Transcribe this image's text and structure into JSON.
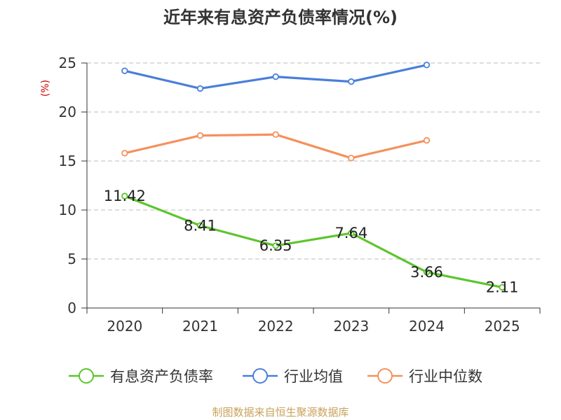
{
  "chart_data": {
    "type": "line",
    "title": "近年来有息资产负债率情况(%)",
    "ylabel": "(%)",
    "xlabel": "",
    "ylim": [
      0,
      25
    ],
    "yticks": [
      "0",
      "5",
      "10",
      "15",
      "20",
      "25"
    ],
    "categories": [
      "2020",
      "2021",
      "2022",
      "2023",
      "2024",
      "2025"
    ],
    "grid": true,
    "legend_position": "bottom",
    "series": [
      {
        "name": "有息资产负债率",
        "color": "#5cc52c",
        "values": [
          11.42,
          8.41,
          6.35,
          7.64,
          3.66,
          2.11
        ],
        "data_labels": [
          "11.42",
          "8.41",
          "6.35",
          "7.64",
          "3.66",
          "2.11"
        ]
      },
      {
        "name": "行业均值",
        "color": "#4a7fd9",
        "values": [
          24.2,
          22.4,
          23.6,
          23.1,
          24.8,
          null
        ]
      },
      {
        "name": "行业中位数",
        "color": "#f4915c",
        "values": [
          15.8,
          17.6,
          17.7,
          15.3,
          17.1,
          null
        ]
      }
    ],
    "source": "制图数据来自恒生聚源数据库"
  }
}
